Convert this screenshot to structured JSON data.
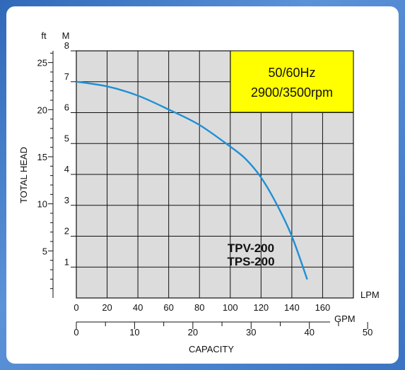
{
  "chart_data": {
    "type": "line",
    "title": "",
    "ylabel": "TOTAL HEAD",
    "xlabel": "CAPACITY",
    "units": {
      "lpm": "LPM",
      "gpm": "GPM",
      "ft": "ft",
      "m": "M"
    },
    "x_lpm_ticks": [
      "0",
      "20",
      "40",
      "60",
      "80",
      "100",
      "120",
      "140",
      "160"
    ],
    "x_gpm_ticks": [
      "0",
      "10",
      "20",
      "30",
      "40",
      "50"
    ],
    "y_m_ticks": [
      "1",
      "2",
      "3",
      "4",
      "5",
      "6",
      "7",
      "8"
    ],
    "y_ft_ticks": [
      "5",
      "10",
      "15",
      "20",
      "25"
    ],
    "xlim_lpm": [
      0,
      180
    ],
    "ylim_m": [
      0,
      8
    ],
    "grid": true,
    "info_box": {
      "line1": "50/60Hz",
      "line2": "2900/3500rpm",
      "color": "#ffff00"
    },
    "models": [
      "TPV-200",
      "TPS-200"
    ],
    "series": [
      {
        "color": "#1e90d6",
        "x": [
          0,
          20,
          40,
          60,
          80,
          100,
          110,
          120,
          130,
          140,
          150
        ],
        "y": [
          7.0,
          6.85,
          6.55,
          6.1,
          5.6,
          4.9,
          4.5,
          3.9,
          3.05,
          2.0,
          0.6
        ]
      }
    ]
  }
}
